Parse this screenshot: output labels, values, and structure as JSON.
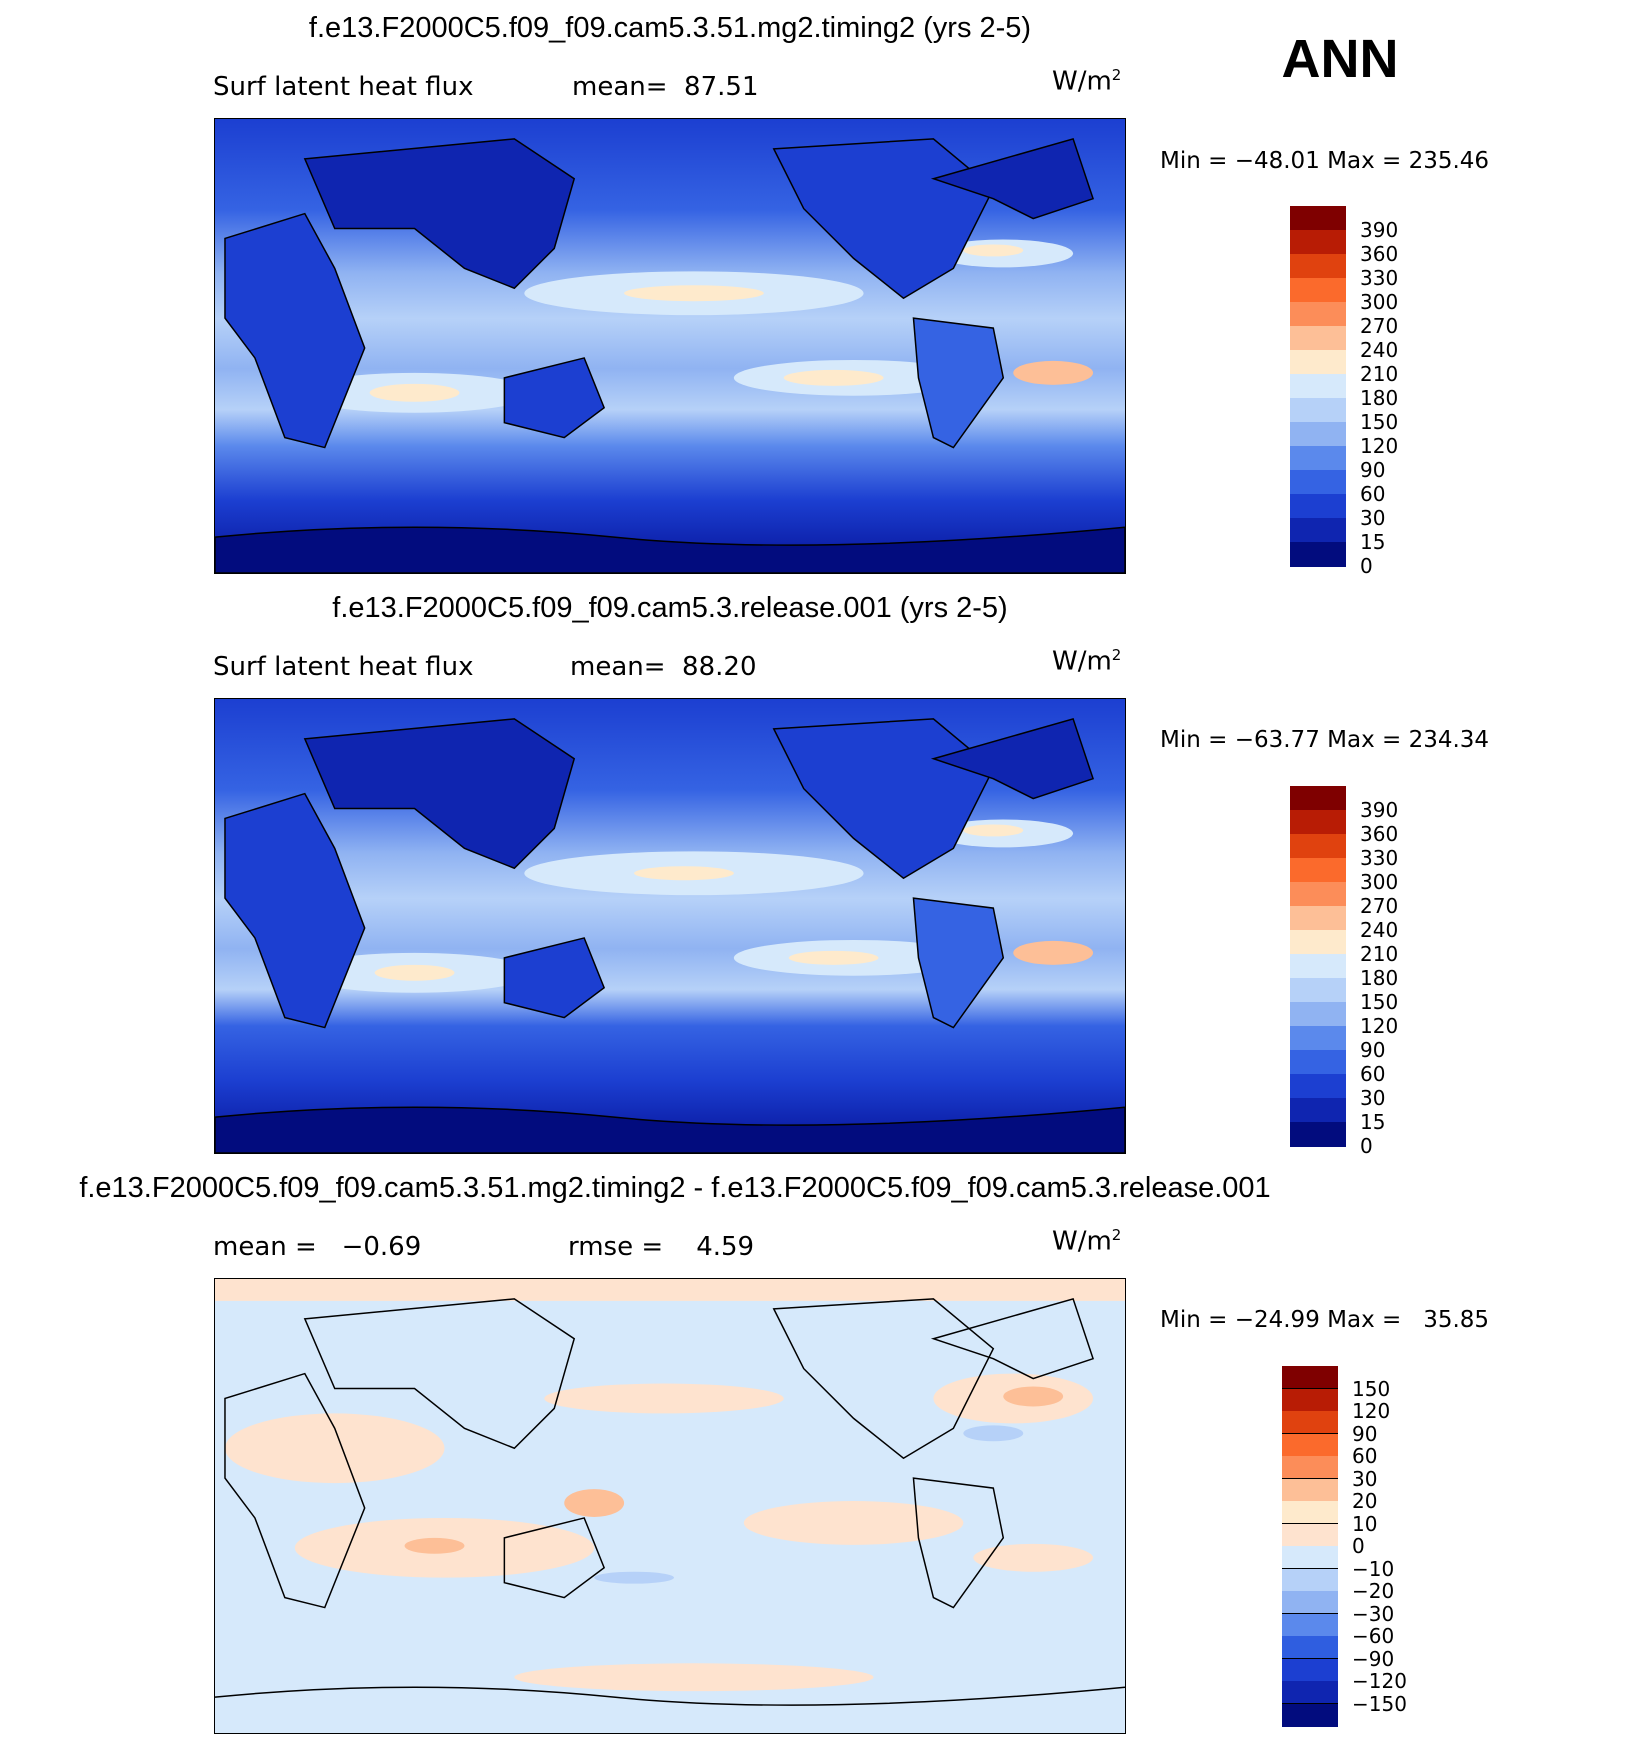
{
  "season": "ANN",
  "panels": [
    {
      "title": "f.e13.F2000C5.f09_f09.cam5.3.51.mg2.timing2 (yrs 2-5)",
      "left_label": "Surf latent heat flux",
      "right_label": "mean=  87.51",
      "units": "W/m",
      "units_exp": "2",
      "minmax": "Min = −48.01 Max = 235.46",
      "levels": [
        "390",
        "360",
        "330",
        "300",
        "270",
        "240",
        "210",
        "180",
        "150",
        "120",
        "90",
        "60",
        "30",
        "15",
        "0"
      ],
      "colors": [
        "#7f0000",
        "#b81c05",
        "#e0420f",
        "#fb6a2c",
        "#fc8d59",
        "#fdbf97",
        "#feeacc",
        "#d6e9fb",
        "#b6d1f8",
        "#90b3f2",
        "#5b89ec",
        "#3563e3",
        "#1c3fd1",
        "#0f25b0",
        "#020c7e"
      ]
    },
    {
      "title": "f.e13.F2000C5.f09_f09.cam5.3.release.001 (yrs 2-5)",
      "left_label": "Surf latent heat flux",
      "right_label": "mean=  88.20",
      "units": "W/m",
      "units_exp": "2",
      "minmax": "Min = −63.77 Max = 234.34",
      "levels": [
        "390",
        "360",
        "330",
        "300",
        "270",
        "240",
        "210",
        "180",
        "150",
        "120",
        "90",
        "60",
        "30",
        "15",
        "0"
      ],
      "colors": [
        "#7f0000",
        "#b81c05",
        "#e0420f",
        "#fb6a2c",
        "#fc8d59",
        "#fdbf97",
        "#feeacc",
        "#d6e9fb",
        "#b6d1f8",
        "#90b3f2",
        "#5b89ec",
        "#3563e3",
        "#1c3fd1",
        "#0f25b0",
        "#020c7e"
      ]
    },
    {
      "title": "f.e13.F2000C5.f09_f09.cam5.3.51.mg2.timing2 - f.e13.F2000C5.f09_f09.cam5.3.release.001",
      "left_label": "mean =   −0.69",
      "right_label": "rmse =    4.59",
      "units": "W/m",
      "units_exp": "2",
      "minmax": "Min = −24.99 Max =   35.85",
      "levels": [
        "150",
        "120",
        "90",
        "60",
        "30",
        "20",
        "10",
        "0",
        "−10",
        "−20",
        "−30",
        "−60",
        "−90",
        "−120",
        "−150"
      ],
      "colors": [
        "#7f0000",
        "#b81c05",
        "#e0420f",
        "#fb6a2c",
        "#fc8d59",
        "#fdbf97",
        "#feeacc",
        "#fee3cf",
        "#d6e9fb",
        "#b6d1f8",
        "#90b3f2",
        "#5b89ec",
        "#2f5ee0",
        "#1c3fd1",
        "#0f25b0",
        "#020c7e"
      ]
    }
  ]
}
